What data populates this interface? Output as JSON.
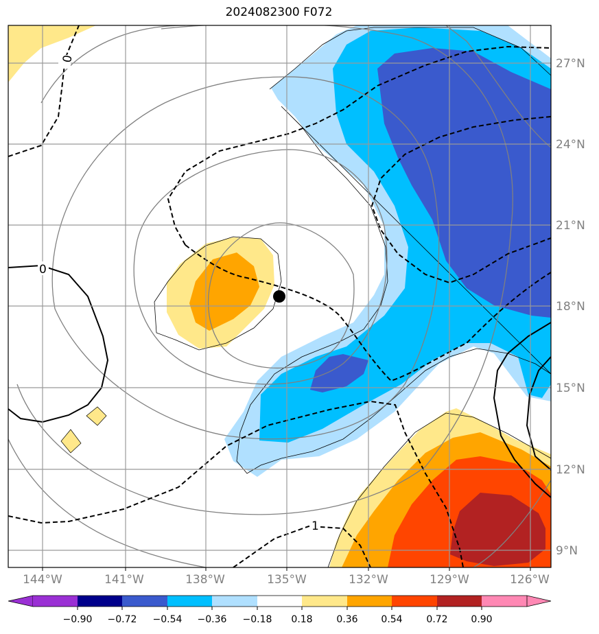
{
  "title": "2024082300 F072",
  "map": {
    "lon_ticks": [
      "144°W",
      "141°W",
      "138°W",
      "135°W",
      "132°W",
      "129°W",
      "126°W"
    ],
    "lat_ticks": [
      "27°N",
      "24°N",
      "21°N",
      "18°N",
      "15°N",
      "12°N",
      "9°N"
    ],
    "contour_labels": [
      "0",
      "0",
      "1"
    ],
    "storm_marker": "storm-center-dot"
  },
  "colorbar": {
    "ticks": [
      "−0.90",
      "−0.72",
      "−0.54",
      "−0.36",
      "−0.18",
      "0.18",
      "0.36",
      "0.54",
      "0.72",
      "0.90"
    ],
    "colors": [
      "#9a30d4",
      "#00008b",
      "#3a5acd",
      "#00bfff",
      "#b0e0ff",
      "#ffffff",
      "#ffe88a",
      "#ffa500",
      "#ff4500",
      "#b22222",
      "#ff88b4"
    ]
  },
  "colors": {
    "frame": "#000000",
    "grid": "#999999",
    "gray_contour": "#808080",
    "axis_text": "#808080"
  }
}
